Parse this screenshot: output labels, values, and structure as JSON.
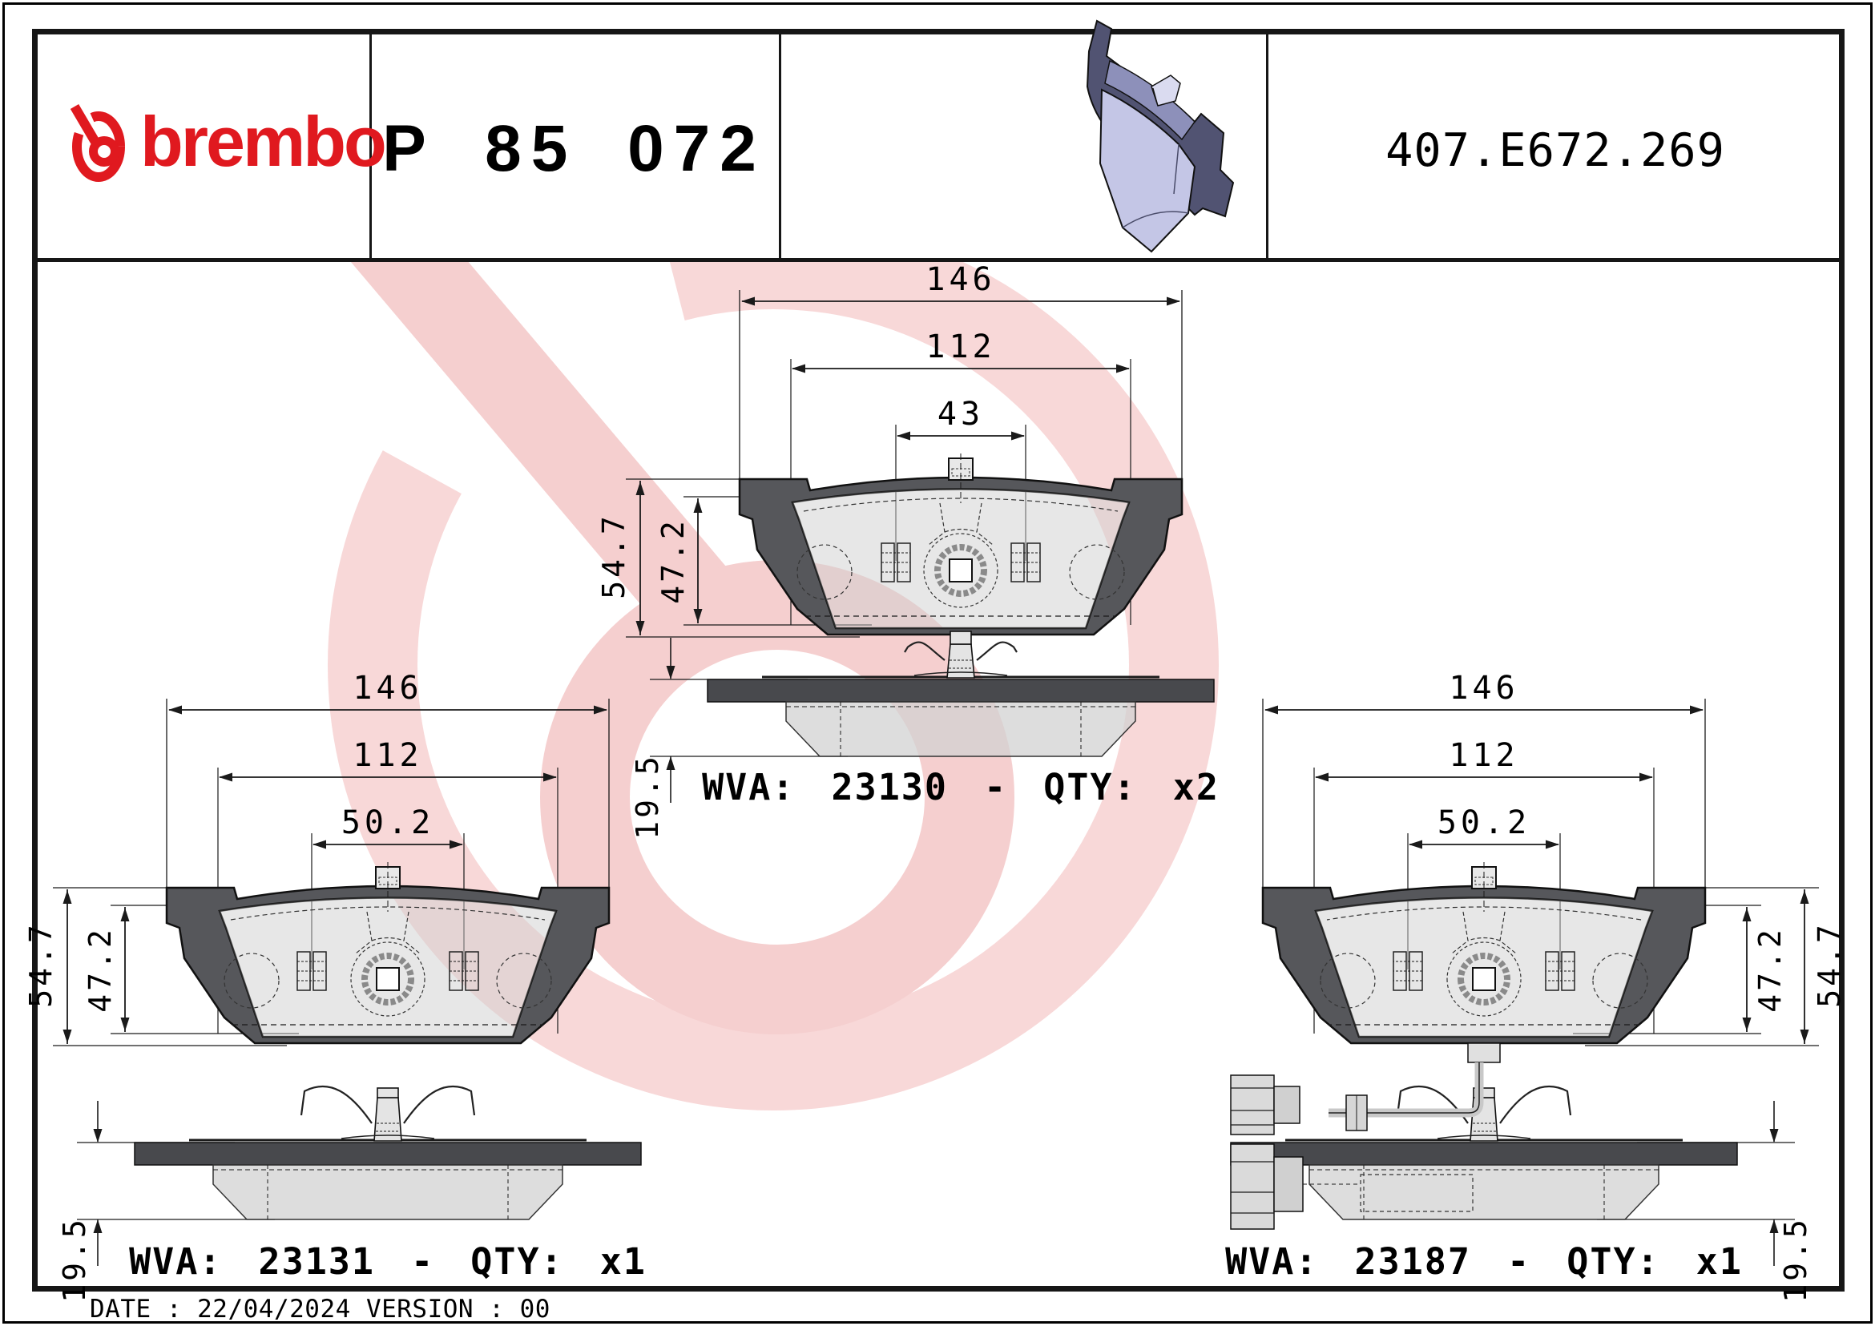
{
  "header": {
    "brand_wordmark": "brembo",
    "part_number": "P 85 072",
    "catalog_ref": "407.E672.269"
  },
  "footer": {
    "date_line": "DATE : 22/04/2024 VERSION : 00"
  },
  "colors": {
    "brand_red": "#e0191f",
    "watermark_pink": "#f7d6d6",
    "pad_face_lavender": "#c4c6e6",
    "pad_back_dark": "#515372",
    "backplate_gray": "#56575b",
    "friction_gray": "#d0d0d0"
  },
  "views": [
    {
      "name": "front-and-side-view-pad-23130",
      "wva_label": "WVA: 23130 - QTY: x2",
      "dims": {
        "overall_width": "146",
        "pad_width": "112",
        "center_feature": "43",
        "overall_height": "54.7",
        "pad_height": "47.2",
        "thickness": "19.5"
      }
    },
    {
      "name": "front-and-side-view-pad-23131",
      "wva_label": "WVA: 23131 - QTY: x1",
      "dims": {
        "overall_width": "146",
        "pad_width": "112",
        "center_feature": "50.2",
        "overall_height": "54.7",
        "pad_height": "47.2",
        "thickness": "19.5"
      }
    },
    {
      "name": "front-and-side-view-pad-23187-with-wear-sensor",
      "wva_label": "WVA: 23187 - QTY: x1",
      "dims": {
        "overall_width": "146",
        "pad_width": "112",
        "center_feature": "50.2",
        "overall_height": "54.7",
        "pad_height": "47.2",
        "thickness": "19.5"
      }
    }
  ]
}
